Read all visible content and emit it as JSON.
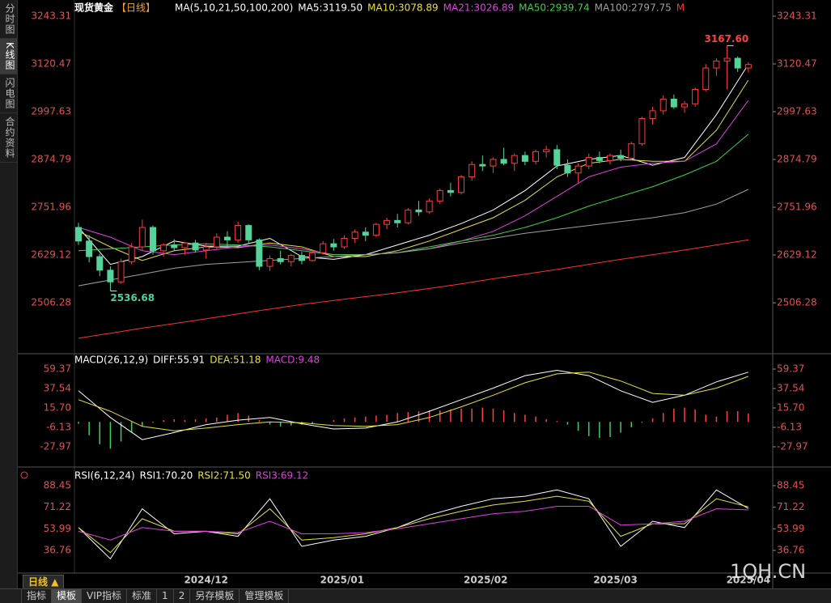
{
  "sidebar": {
    "tabs": [
      "分时图",
      "K线图",
      "闪电图",
      "合约资料"
    ],
    "active": 1
  },
  "toolbar": {
    "period": "日线",
    "items": [
      "指标",
      "模板",
      "VIP指标",
      "标准",
      "1",
      "2",
      "另存模板",
      "管理模板"
    ],
    "active": 1
  },
  "watermark": "1QH.CN",
  "chart_data": [
    {
      "type": "candlestick",
      "title": "现货黄金",
      "period": "【日线】",
      "subtitle": "MA(5,10,21,50,100,200)",
      "extra_label": "M",
      "extra_color": "#ff3030",
      "up_color": "#ff3b3b",
      "down_color": "#54d39a",
      "candles": [
        [
          2700,
          2712,
          2655,
          2665
        ],
        [
          2665,
          2680,
          2610,
          2625
        ],
        [
          2625,
          2632,
          2575,
          2590
        ],
        [
          2590,
          2600,
          2536.68,
          2560
        ],
        [
          2560,
          2620,
          2555,
          2612
        ],
        [
          2612,
          2660,
          2605,
          2650
        ],
        [
          2650,
          2720,
          2640,
          2700
        ],
        [
          2700,
          2705,
          2630,
          2640
        ],
        [
          2640,
          2660,
          2625,
          2655
        ],
        [
          2655,
          2670,
          2640,
          2648
        ],
        [
          2648,
          2662,
          2630,
          2660
        ],
        [
          2660,
          2668,
          2635,
          2642
        ],
        [
          2642,
          2660,
          2620,
          2650
        ],
        [
          2650,
          2685,
          2645,
          2675
        ],
        [
          2675,
          2690,
          2650,
          2668
        ],
        [
          2668,
          2715,
          2660,
          2705
        ],
        [
          2705,
          2708,
          2660,
          2668
        ],
        [
          2668,
          2672,
          2590,
          2600
        ],
        [
          2600,
          2628,
          2588,
          2620
        ],
        [
          2620,
          2640,
          2605,
          2612
        ],
        [
          2612,
          2632,
          2600,
          2628
        ],
        [
          2628,
          2638,
          2605,
          2615
        ],
        [
          2615,
          2640,
          2612,
          2635
        ],
        [
          2635,
          2665,
          2630,
          2658
        ],
        [
          2658,
          2670,
          2640,
          2650
        ],
        [
          2650,
          2680,
          2645,
          2672
        ],
        [
          2672,
          2695,
          2660,
          2688
        ],
        [
          2688,
          2700,
          2665,
          2680
        ],
        [
          2680,
          2712,
          2675,
          2708
        ],
        [
          2708,
          2725,
          2695,
          2718
        ],
        [
          2718,
          2735,
          2700,
          2712
        ],
        [
          2712,
          2750,
          2708,
          2745
        ],
        [
          2745,
          2768,
          2730,
          2740
        ],
        [
          2740,
          2775,
          2735,
          2768
        ],
        [
          2768,
          2800,
          2760,
          2795
        ],
        [
          2795,
          2815,
          2780,
          2790
        ],
        [
          2790,
          2835,
          2785,
          2830
        ],
        [
          2830,
          2870,
          2820,
          2862
        ],
        [
          2862,
          2885,
          2845,
          2858
        ],
        [
          2858,
          2880,
          2840,
          2875
        ],
        [
          2875,
          2905,
          2860,
          2865
        ],
        [
          2865,
          2890,
          2845,
          2885
        ],
        [
          2885,
          2895,
          2860,
          2870
        ],
        [
          2870,
          2900,
          2862,
          2895
        ],
        [
          2895,
          2910,
          2880,
          2900
        ],
        [
          2900,
          2912,
          2850,
          2860
        ],
        [
          2860,
          2875,
          2830,
          2840
        ],
        [
          2840,
          2865,
          2815,
          2858
        ],
        [
          2858,
          2890,
          2850,
          2880
        ],
        [
          2880,
          2895,
          2865,
          2872
        ],
        [
          2872,
          2890,
          2862,
          2885
        ],
        [
          2885,
          2900,
          2870,
          2878
        ],
        [
          2878,
          2920,
          2875,
          2915
        ],
        [
          2915,
          2985,
          2910,
          2980
        ],
        [
          2980,
          3010,
          2965,
          3000
        ],
        [
          3000,
          3040,
          2990,
          3030
        ],
        [
          3030,
          3042,
          3005,
          3010
        ],
        [
          3010,
          3025,
          2995,
          3018
        ],
        [
          3018,
          3060,
          3010,
          3055
        ],
        [
          3055,
          3120,
          3050,
          3110
        ],
        [
          3110,
          3135,
          3090,
          3128
        ],
        [
          3128,
          3167.6,
          3055,
          3135
        ],
        [
          3135,
          3140,
          3100,
          3110
        ],
        [
          3110,
          3125,
          3100,
          3119
        ]
      ],
      "annotations": [
        {
          "candle": 61,
          "label": "3167.60",
          "color": "#ff4040"
        },
        {
          "candle": 3,
          "label": "2536.68",
          "color": "#4cd19a"
        }
      ],
      "x": [
        0,
        3,
        6,
        9,
        12,
        15,
        18,
        21,
        24,
        27,
        30,
        33,
        36,
        39,
        42,
        45,
        48,
        51,
        54,
        57,
        60,
        63
      ],
      "series": [
        {
          "name": "MA5:3119.50",
          "color": "#ffffff",
          "values": [
            2700,
            2605,
            2625,
            2665,
            2652,
            2652,
            2672,
            2625,
            2618,
            2630,
            2655,
            2680,
            2710,
            2745,
            2795,
            2858,
            2875,
            2885,
            2860,
            2880,
            2990,
            3119.5
          ]
        },
        {
          "name": "MA10:3078.89",
          "color": "#e8e040",
          "values": [
            2690,
            2650,
            2615,
            2640,
            2650,
            2648,
            2660,
            2650,
            2625,
            2625,
            2640,
            2665,
            2695,
            2725,
            2770,
            2830,
            2865,
            2875,
            2870,
            2870,
            2950,
            3078.89
          ]
        },
        {
          "name": "MA21:3026.89",
          "color": "#e040e0",
          "values": [
            2700,
            2675,
            2640,
            2630,
            2640,
            2650,
            2655,
            2645,
            2630,
            2630,
            2635,
            2645,
            2665,
            2690,
            2730,
            2780,
            2830,
            2855,
            2865,
            2870,
            2915,
            3026.89
          ]
        },
        {
          "name": "MA50:2939.74",
          "color": "#40d040",
          "values": [
            2640,
            2645,
            2650,
            2655,
            2658,
            2655,
            2650,
            2640,
            2630,
            2630,
            2635,
            2650,
            2665,
            2680,
            2700,
            2725,
            2755,
            2780,
            2805,
            2835,
            2870,
            2939.74
          ]
        },
        {
          "name": "MA100:2797.75",
          "color": "#a0a0a0",
          "values": [
            2550,
            2565,
            2580,
            2595,
            2605,
            2610,
            2615,
            2620,
            2625,
            2630,
            2635,
            2645,
            2660,
            2672,
            2685,
            2695,
            2705,
            2715,
            2725,
            2738,
            2760,
            2797.75
          ]
        },
        {
          "color": "#ff3030",
          "values": [
            2415,
            2428,
            2441,
            2453,
            2465,
            2478,
            2490,
            2502,
            2512,
            2522,
            2532,
            2543,
            2555,
            2568,
            2580,
            2592,
            2605,
            2618,
            2630,
            2642,
            2655,
            2668
          ]
        }
      ],
      "ylim": [
        2379.45,
        3264.1
      ],
      "yticks": [
        3243.31,
        3120.47,
        2997.63,
        2874.79,
        2751.96,
        2629.12,
        2506.28
      ],
      "xlabels": [
        {
          "index": 12,
          "label": "2024/12"
        },
        {
          "index": 24.8,
          "label": "2025/01"
        },
        {
          "index": 38.3,
          "label": "2025/02"
        },
        {
          "index": 50.5,
          "label": "2025/03"
        },
        {
          "index": 63,
          "label": "2025/04"
        }
      ]
    },
    {
      "type": "macd",
      "title": "MACD(26,12,9)",
      "hist_label": "MACD:9.48",
      "hist_label_color": "#e040e0",
      "up_color": "#ff4040",
      "down_color": "#40d060",
      "histogram": [
        -2,
        -15,
        -25,
        -30,
        -22,
        -12,
        -5,
        -1,
        2,
        3,
        2,
        3,
        4,
        5,
        8,
        10,
        7,
        2,
        -3,
        -5,
        -4,
        -3,
        -2,
        0,
        2,
        4,
        5,
        6,
        7,
        8,
        10,
        11,
        12,
        13,
        13,
        14,
        15,
        15,
        16,
        15,
        13,
        10,
        8,
        6,
        3,
        1,
        -3,
        -10,
        -16,
        -18,
        -17,
        -12,
        -6,
        -1,
        4,
        10,
        15,
        16,
        14,
        8,
        6,
        12,
        12,
        9.48
      ],
      "x": [
        0,
        3,
        6,
        9,
        12,
        15,
        18,
        21,
        24,
        27,
        30,
        33,
        36,
        39,
        42,
        45,
        48,
        51,
        54,
        57,
        60,
        63
      ],
      "series": [
        {
          "name": "DIFF:55.91",
          "color": "#ffffff",
          "values": [
            35,
            5,
            -20,
            -12,
            -3,
            2,
            5,
            -2,
            -8,
            -7,
            0,
            12,
            25,
            38,
            52,
            58,
            52,
            35,
            22,
            30,
            45,
            55.91
          ]
        },
        {
          "name": "DEA:51.18",
          "color": "#e8e040",
          "values": [
            25,
            12,
            -5,
            -10,
            -7,
            -3,
            0,
            -1,
            -4,
            -5,
            -3,
            5,
            17,
            30,
            44,
            54,
            56,
            46,
            32,
            30,
            38,
            51.18
          ]
        }
      ],
      "ylim": [
        -48.9,
        73.93
      ],
      "yticks": [
        59.37,
        37.54,
        {
          "value": 15.7,
          "label": "15.70"
        },
        -6.13,
        -27.97
      ]
    },
    {
      "type": "rsi",
      "title": "RSI(6,12,24)",
      "x": [
        0,
        3,
        6,
        9,
        12,
        15,
        18,
        21,
        24,
        27,
        30,
        33,
        36,
        39,
        42,
        45,
        48,
        51,
        54,
        57,
        60,
        63
      ],
      "series": [
        {
          "name": "RSI1:70.20",
          "color": "#ffffff",
          "values": [
            55,
            30,
            70,
            50,
            52,
            48,
            78,
            40,
            45,
            48,
            55,
            65,
            72,
            78,
            80,
            85,
            78,
            40,
            60,
            55,
            85,
            70.2
          ]
        },
        {
          "name": "RSI2:71.50",
          "color": "#e8e040",
          "values": [
            55,
            35,
            62,
            52,
            52,
            50,
            70,
            45,
            47,
            50,
            55,
            62,
            68,
            73,
            76,
            80,
            76,
            48,
            58,
            58,
            78,
            71.5
          ]
        },
        {
          "name": "RSI3:69.12",
          "color": "#e040e0",
          "values": [
            52,
            45,
            55,
            52,
            52,
            51,
            60,
            50,
            50,
            51,
            54,
            58,
            62,
            66,
            68,
            72,
            72,
            57,
            58,
            60,
            70,
            69.12
          ]
        }
      ],
      "ylim": [
        18.67,
        101.37
      ],
      "yticks": [
        88.45,
        71.22,
        53.99,
        36.76
      ]
    }
  ]
}
